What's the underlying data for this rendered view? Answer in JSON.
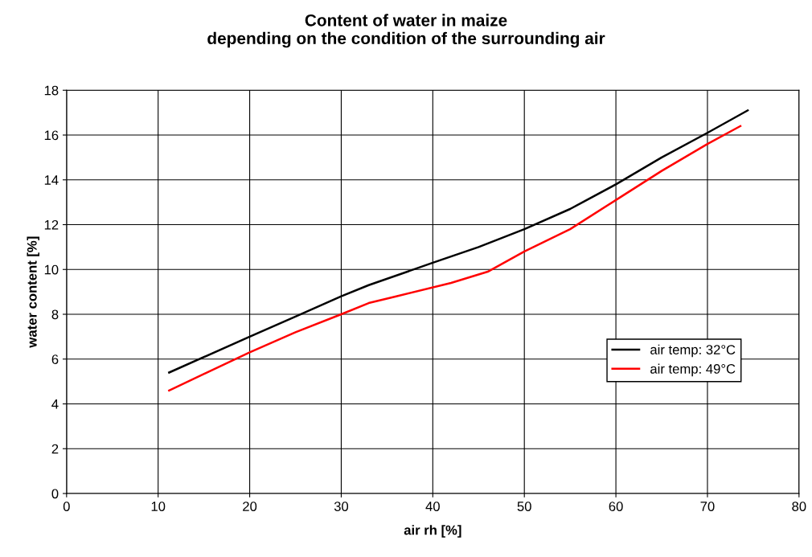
{
  "chart_data": {
    "type": "line",
    "title": "Content of water in maize\ndepending on the condition of the surrounding air",
    "xlabel": "air rh [%]",
    "ylabel": "water content [%]",
    "xlim": [
      0,
      80
    ],
    "xticks": [
      0,
      10,
      20,
      30,
      40,
      50,
      60,
      70,
      80
    ],
    "ylim": [
      0,
      18
    ],
    "yticks": [
      0,
      2,
      4,
      6,
      8,
      10,
      12,
      14,
      16,
      18
    ],
    "grid": true,
    "legend": "right",
    "marker": "none",
    "line_style": "solid",
    "series": [
      {
        "name": "air temp: 32°C",
        "color": "#000000",
        "x": [
          11.2,
          20,
          25,
          30,
          33,
          40,
          45,
          50,
          55,
          60,
          65,
          70,
          74.4
        ],
        "values": [
          5.4,
          7.0,
          7.9,
          8.8,
          9.3,
          10.3,
          11.0,
          11.8,
          12.7,
          13.8,
          15.0,
          16.1,
          17.1
        ]
      },
      {
        "name": "air temp: 49°C",
        "color": "#ff0000",
        "x": [
          11.2,
          20,
          25,
          30,
          33,
          36,
          42,
          46,
          50,
          55,
          60,
          65,
          70,
          73.6
        ],
        "values": [
          4.6,
          6.3,
          7.2,
          8.0,
          8.5,
          8.8,
          9.4,
          9.9,
          10.8,
          11.8,
          13.1,
          14.4,
          15.6,
          16.4
        ]
      }
    ]
  }
}
